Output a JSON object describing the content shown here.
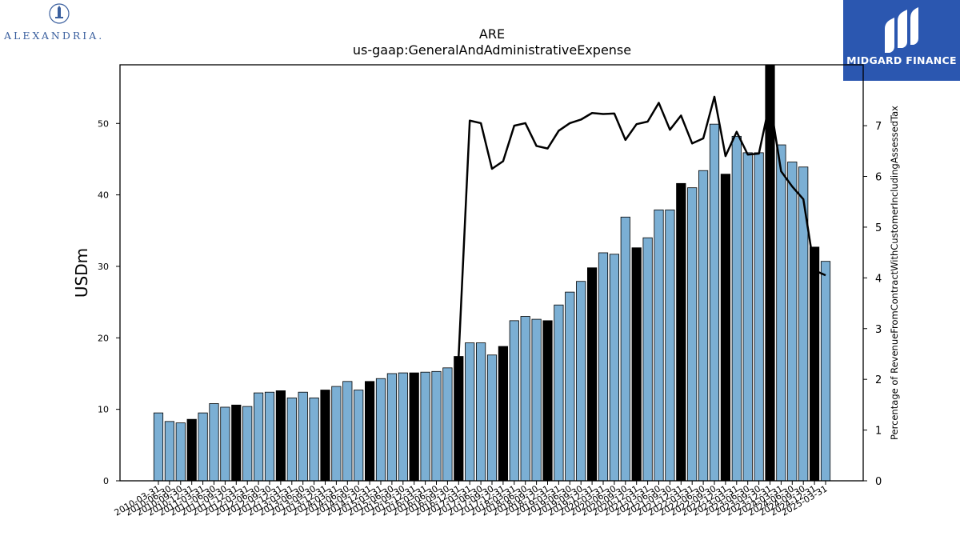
{
  "logos": {
    "left": {
      "text": "ALEXANDRIA."
    },
    "right": {
      "text": "MIDGARD FINANCE"
    }
  },
  "colors": {
    "bar_normal": "#7bafd4",
    "bar_q4": "#000000",
    "line": "#000000"
  },
  "chart_data": {
    "type": "bar",
    "title": "ARE",
    "subtitle": "us-gaap:GeneralAndAdministrativeExpense",
    "ylabel": "USDm",
    "y2label": "Percentage of RevenueFromContractWithCustomerIncludingAssessedTax",
    "ylim": [
      0,
      58.2
    ],
    "y2lim": [
      0,
      8.2
    ],
    "yticks": [
      0,
      10,
      20,
      30,
      40,
      50
    ],
    "y2ticks": [
      0,
      1,
      2,
      3,
      4,
      5,
      6,
      7
    ],
    "grid": false,
    "categories": [
      "2010-03-31",
      "2010-06-30",
      "2010-09-30",
      "2010-12-31",
      "2011-03-31",
      "2011-06-30",
      "2011-09-30",
      "2011-12-31",
      "2012-03-31",
      "2012-06-30",
      "2012-09-30",
      "2012-12-31",
      "2013-03-31",
      "2013-06-30",
      "2013-09-30",
      "2013-12-31",
      "2014-03-31",
      "2014-06-30",
      "2014-09-30",
      "2014-12-31",
      "2015-03-31",
      "2015-06-30",
      "2015-09-30",
      "2015-12-31",
      "2016-03-31",
      "2016-06-30",
      "2016-09-30",
      "2016-12-31",
      "2017-03-31",
      "2017-06-30",
      "2017-09-30",
      "2017-12-31",
      "2018-03-31",
      "2018-06-30",
      "2018-09-30",
      "2018-12-31",
      "2019-03-31",
      "2019-06-30",
      "2019-09-30",
      "2019-12-31",
      "2020-03-31",
      "2020-06-30",
      "2020-09-30",
      "2020-12-31",
      "2021-03-31",
      "2021-06-30",
      "2021-09-30",
      "2021-12-31",
      "2022-03-31",
      "2022-06-30",
      "2022-09-30",
      "2022-12-31",
      "2023-03-31",
      "2023-06-30",
      "2023-09-30",
      "2023-12-31",
      "2024-03-31",
      "2024-06-30",
      "2024-09-30",
      "2024-12-31",
      "2025-03-31"
    ],
    "series": [
      {
        "kind": "bar",
        "values": [
          9.5,
          8.3,
          8.1,
          8.6,
          9.5,
          10.8,
          10.3,
          10.6,
          10.4,
          12.3,
          12.4,
          12.6,
          11.6,
          12.4,
          11.6,
          12.7,
          13.2,
          13.9,
          12.7,
          13.9,
          14.3,
          15.0,
          15.1,
          15.1,
          15.2,
          15.3,
          15.8,
          17.4,
          19.3,
          19.3,
          17.6,
          18.8,
          22.4,
          23.0,
          22.6,
          22.4,
          24.6,
          26.4,
          27.9,
          29.8,
          31.9,
          31.7,
          36.9,
          32.6,
          34.0,
          37.9,
          37.9,
          41.6,
          41.0,
          43.4,
          49.9,
          42.9,
          48.2,
          45.9,
          45.9,
          58.5,
          47.0,
          44.6,
          43.9,
          32.7,
          30.7
        ]
      },
      {
        "kind": "line",
        "axis": "right",
        "values": [
          null,
          null,
          null,
          null,
          null,
          null,
          null,
          null,
          null,
          null,
          null,
          null,
          null,
          null,
          null,
          null,
          null,
          null,
          null,
          null,
          null,
          null,
          null,
          null,
          null,
          null,
          null,
          2.45,
          7.1,
          7.05,
          6.15,
          6.3,
          7.0,
          7.05,
          6.6,
          6.55,
          6.9,
          7.05,
          7.12,
          7.25,
          7.23,
          7.24,
          6.72,
          7.03,
          7.08,
          7.45,
          6.92,
          7.2,
          6.65,
          6.75,
          7.57,
          6.4,
          6.88,
          6.43,
          6.45,
          7.48,
          6.1,
          5.8,
          5.55,
          4.15,
          4.05
        ]
      }
    ]
  }
}
